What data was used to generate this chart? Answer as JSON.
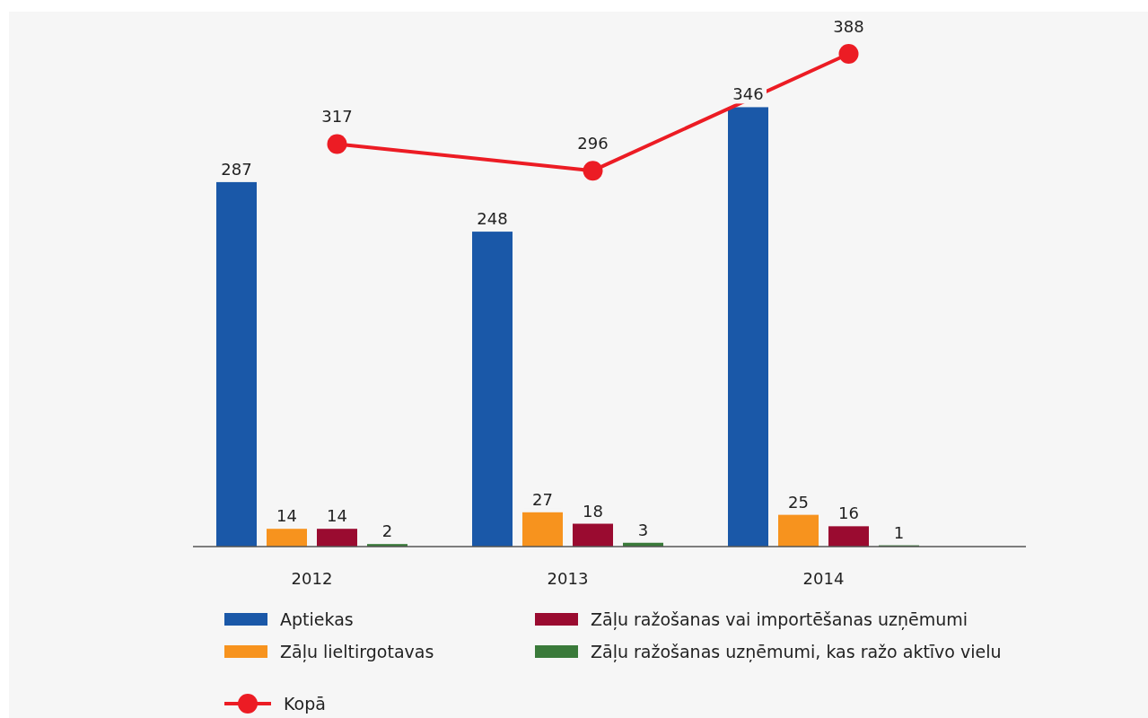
{
  "chart_data": {
    "type": "bar",
    "categories": [
      "2012",
      "2013",
      "2014"
    ],
    "series": [
      {
        "name": "Aptiekas",
        "color": "#1a58a8",
        "values": [
          287,
          248,
          346
        ]
      },
      {
        "name": "Zāļu lieltirgotavas",
        "color": "#f7931e",
        "values": [
          14,
          27,
          25
        ]
      },
      {
        "name": "Zāļu ražošanas vai importēšanas uzņēmumi",
        "color": "#9a0b30",
        "values": [
          14,
          18,
          16
        ]
      },
      {
        "name": "Zāļu ražošanas uzņēmumi, kas ražo aktīvo vielu",
        "color": "#3a7a3a",
        "values": [
          2,
          3,
          1
        ]
      },
      {
        "name": "Kopā",
        "type": "line",
        "color": "#ec1c24",
        "values": [
          317,
          296,
          388
        ],
        "marker": "circle"
      }
    ],
    "data_labels": true,
    "legend": "bottom"
  }
}
